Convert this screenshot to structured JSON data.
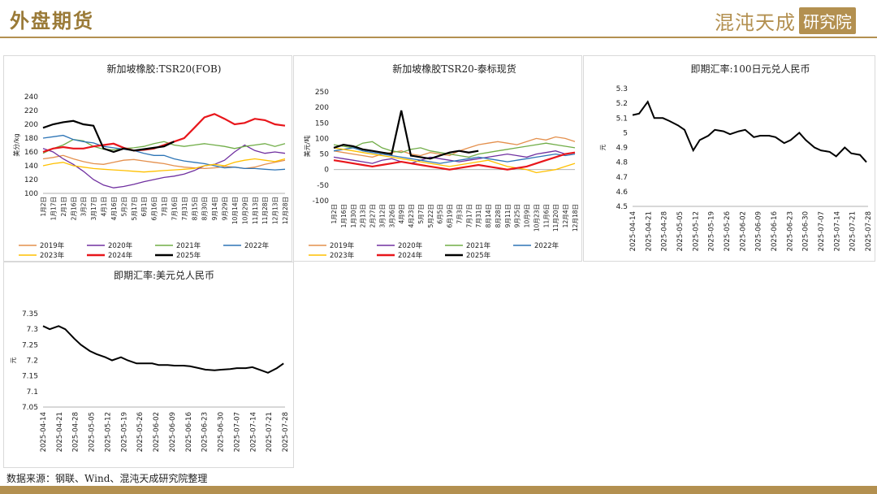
{
  "header": {
    "title": "外盘期货",
    "brand_text": "混沌天成",
    "brand_box": "研究院"
  },
  "source_note": "数据来源：钢联、Wind、混沌天成研究院整理",
  "colors": {
    "accent": "#b39050",
    "s2019": "#e4904d",
    "s2020": "#7030a0",
    "s2021": "#70ad47",
    "s2022": "#2e75b6",
    "s2023": "#ffc000",
    "s2024": "#e8161b",
    "s2025": "#000000"
  },
  "chart_data": [
    {
      "type": "line",
      "title": "新加坡橡胶:TSR20(FOB)",
      "ylabel": "美分/kg",
      "ylim": [
        100,
        240
      ],
      "yticks": [
        "240",
        "220",
        "200",
        "180",
        "160",
        "140",
        "120",
        "100"
      ],
      "xticks": [
        "1月2日",
        "1月17日",
        "2月1日",
        "2月16日",
        "3月2日",
        "3月17日",
        "4月1日",
        "4月16日",
        "5月2日",
        "5月17日",
        "6月1日",
        "6月16日",
        "7月1日",
        "7月16日",
        "7月31日",
        "8月15日",
        "8月30日",
        "9月14日",
        "9月29日",
        "10月14日",
        "10月29日",
        "11月13日",
        "11月28日",
        "12月13日",
        "12月28日"
      ],
      "legend": [
        "2019年",
        "2020年",
        "2021年",
        "2022年",
        "2023年",
        "2024年",
        "2025年"
      ],
      "series": [
        {
          "name": "2019年",
          "values": [
            150,
            152,
            155,
            150,
            146,
            143,
            142,
            145,
            148,
            149,
            147,
            145,
            143,
            140,
            138,
            137,
            136,
            137,
            139,
            138,
            136,
            138,
            142,
            145,
            148
          ]
        },
        {
          "name": "2020年",
          "values": [
            165,
            160,
            150,
            142,
            132,
            120,
            112,
            108,
            110,
            113,
            117,
            120,
            123,
            125,
            128,
            133,
            140,
            142,
            148,
            160,
            170,
            162,
            158,
            160,
            158
          ]
        },
        {
          "name": "2021年",
          "values": [
            158,
            165,
            170,
            178,
            176,
            168,
            164,
            163,
            165,
            166,
            168,
            172,
            175,
            170,
            168,
            170,
            172,
            170,
            168,
            165,
            168,
            170,
            172,
            168,
            172
          ]
        },
        {
          "name": "2022年",
          "values": [
            180,
            182,
            184,
            178,
            175,
            173,
            168,
            166,
            164,
            162,
            158,
            155,
            155,
            150,
            147,
            145,
            143,
            140,
            137,
            138,
            136,
            136,
            135,
            134,
            135
          ]
        },
        {
          "name": "2023年",
          "values": [
            140,
            143,
            145,
            140,
            138,
            136,
            135,
            134,
            133,
            132,
            131,
            132,
            133,
            134,
            135,
            136,
            140,
            142,
            140,
            145,
            148,
            150,
            148,
            146,
            150
          ]
        },
        {
          "name": "2024年",
          "values": [
            160,
            165,
            167,
            165,
            165,
            168,
            170,
            172,
            166,
            162,
            163,
            165,
            170,
            175,
            180,
            195,
            210,
            215,
            208,
            200,
            202,
            208,
            206,
            200,
            198
          ]
        },
        {
          "name": "2025年",
          "values": [
            195,
            200,
            203,
            205,
            200,
            198,
            165,
            160,
            165,
            162,
            164,
            166,
            168,
            175,
            null,
            null,
            null,
            null,
            null,
            null,
            null,
            null,
            null,
            null,
            null
          ]
        }
      ]
    },
    {
      "type": "line",
      "title": "新加坡橡胶TSR20-泰标现货",
      "ylabel": "美元/吨",
      "ylim": [
        -100,
        250
      ],
      "yticks": [
        "250",
        "200",
        "150",
        "100",
        "50",
        "0",
        "-50",
        "-100"
      ],
      "xticks": [
        "1月2日",
        "1月16日",
        "1月30日",
        "2月13日",
        "2月27日",
        "3月12日",
        "3月26日",
        "4月9日",
        "4月23日",
        "5月7日",
        "5月22日",
        "6月5日",
        "6月19日",
        "7月3日",
        "7月17日",
        "7月31日",
        "8月14日",
        "8月28日",
        "9月11日",
        "9月25日",
        "10月9日",
        "10月23日",
        "11月6日",
        "11月20日",
        "12月4日",
        "12月18日"
      ],
      "legend": [
        "2019年",
        "2020年",
        "2021年",
        "2022年",
        "2023年",
        "2024年",
        "2025年"
      ],
      "series": [
        {
          "name": "2019年",
          "values": [
            60,
            55,
            50,
            45,
            40,
            50,
            55,
            60,
            50,
            45,
            55,
            50,
            45,
            60,
            70,
            80,
            85,
            90,
            85,
            80,
            90,
            100,
            95,
            105,
            100,
            90
          ]
        },
        {
          "name": "2020年",
          "values": [
            40,
            35,
            30,
            25,
            20,
            30,
            35,
            25,
            20,
            30,
            40,
            35,
            30,
            25,
            30,
            35,
            40,
            45,
            50,
            45,
            40,
            50,
            55,
            60,
            50,
            55
          ]
        },
        {
          "name": "2021年",
          "values": [
            80,
            75,
            70,
            85,
            90,
            70,
            60,
            55,
            65,
            70,
            60,
            55,
            50,
            45,
            40,
            50,
            55,
            60,
            65,
            70,
            75,
            80,
            85,
            80,
            75,
            70
          ]
        },
        {
          "name": "2022年",
          "values": [
            60,
            65,
            70,
            60,
            55,
            50,
            45,
            40,
            35,
            30,
            25,
            20,
            25,
            30,
            35,
            40,
            35,
            30,
            25,
            30,
            35,
            40,
            45,
            50,
            45,
            50
          ]
        },
        {
          "name": "2023年",
          "values": [
            70,
            65,
            60,
            55,
            50,
            45,
            40,
            35,
            30,
            25,
            20,
            15,
            10,
            15,
            20,
            25,
            30,
            20,
            10,
            5,
            0,
            -10,
            -5,
            0,
            10,
            20
          ]
        },
        {
          "name": "2024年",
          "values": [
            30,
            25,
            20,
            15,
            10,
            15,
            20,
            25,
            20,
            15,
            10,
            5,
            0,
            5,
            10,
            15,
            10,
            5,
            0,
            5,
            10,
            20,
            30,
            40,
            50,
            55
          ]
        },
        {
          "name": "2025年",
          "values": [
            70,
            80,
            75,
            65,
            60,
            55,
            50,
            190,
            45,
            40,
            35,
            45,
            55,
            60,
            55,
            60,
            null,
            null,
            null,
            null,
            null,
            null,
            null,
            null,
            null,
            null
          ]
        }
      ]
    },
    {
      "type": "line",
      "title": "即期汇率:100日元兑人民币",
      "ylabel": "元",
      "ylim": [
        4.5,
        5.3
      ],
      "yticks": [
        "5.3",
        "5.2",
        "5.1",
        "5",
        "4.9",
        "4.8",
        "4.7",
        "4.6",
        "4.5"
      ],
      "xticks": [
        "2025-04-14",
        "2025-04-21",
        "2025-04-28",
        "2025-05-05",
        "2025-05-12",
        "2025-05-19",
        "2025-05-26",
        "2025-06-02",
        "2025-06-09",
        "2025-06-16",
        "2025-06-23",
        "2025-06-30",
        "2025-07-07",
        "2025-07-14",
        "2025-07-21",
        "2025-07-28"
      ],
      "x": [
        "2025-04-14",
        "2025-04-17",
        "2025-04-21",
        "2025-04-24",
        "2025-04-28",
        "2025-05-01",
        "2025-05-05",
        "2025-05-08",
        "2025-05-12",
        "2025-05-15",
        "2025-05-19",
        "2025-05-22",
        "2025-05-26",
        "2025-05-29",
        "2025-06-02",
        "2025-06-05",
        "2025-06-09",
        "2025-06-12",
        "2025-06-16",
        "2025-06-19",
        "2025-06-23",
        "2025-06-26",
        "2025-06-30",
        "2025-07-03",
        "2025-07-07",
        "2025-07-10",
        "2025-07-14",
        "2025-07-17",
        "2025-07-21",
        "2025-07-24",
        "2025-07-28",
        "2025-07-31"
      ],
      "values": [
        5.12,
        5.13,
        5.21,
        5.1,
        5.1,
        5.08,
        5.05,
        5.02,
        4.88,
        4.95,
        4.98,
        5.02,
        5.01,
        4.99,
        5.01,
        5.02,
        4.97,
        4.98,
        4.98,
        4.97,
        4.93,
        4.95,
        5.0,
        4.95,
        4.9,
        4.88,
        4.87,
        4.84,
        4.9,
        4.86,
        4.85,
        4.8
      ]
    },
    {
      "type": "line",
      "title": "即期汇率:美元兑人民币",
      "ylabel": "元",
      "ylim": [
        7.05,
        7.35
      ],
      "yticks": [
        "7.35",
        "7.3",
        "7.25",
        "7.2",
        "7.15",
        "7.1",
        "7.05"
      ],
      "xticks": [
        "2025-04-14",
        "2025-04-21",
        "2025-04-28",
        "2025-05-05",
        "2025-05-12",
        "2025-05-19",
        "2025-05-26",
        "2025-06-02",
        "2025-06-09",
        "2025-06-16",
        "2025-06-23",
        "2025-06-30",
        "2025-07-07",
        "2025-07-14",
        "2025-07-21",
        "2025-07-28"
      ],
      "x": [
        "2025-04-14",
        "2025-04-17",
        "2025-04-21",
        "2025-04-24",
        "2025-04-28",
        "2025-05-01",
        "2025-05-05",
        "2025-05-08",
        "2025-05-12",
        "2025-05-15",
        "2025-05-19",
        "2025-05-22",
        "2025-05-26",
        "2025-05-29",
        "2025-06-02",
        "2025-06-05",
        "2025-06-09",
        "2025-06-12",
        "2025-06-16",
        "2025-06-19",
        "2025-06-23",
        "2025-06-26",
        "2025-06-30",
        "2025-07-03",
        "2025-07-07",
        "2025-07-10",
        "2025-07-14",
        "2025-07-17",
        "2025-07-21",
        "2025-07-24",
        "2025-07-28",
        "2025-07-31"
      ],
      "values": [
        7.31,
        7.3,
        7.31,
        7.3,
        7.27,
        7.25,
        7.23,
        7.22,
        7.21,
        7.2,
        7.21,
        7.2,
        7.19,
        7.19,
        7.19,
        7.185,
        7.185,
        7.183,
        7.183,
        7.181,
        7.175,
        7.17,
        7.168,
        7.17,
        7.172,
        7.175,
        7.175,
        7.178,
        7.168,
        7.16,
        7.175,
        7.19
      ]
    }
  ]
}
